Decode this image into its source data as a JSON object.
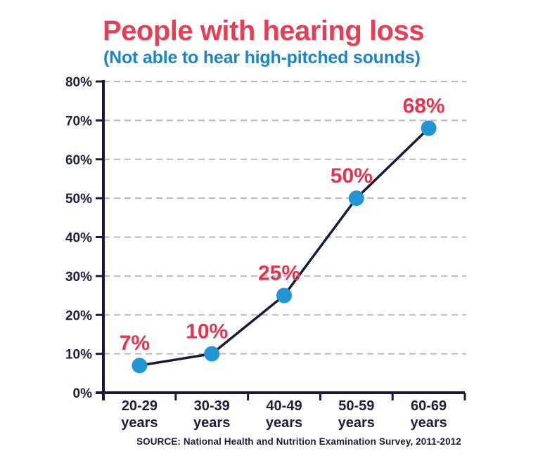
{
  "title": "People with hearing loss",
  "subtitle": "(Not able to hear high-pitched sounds)",
  "source": "SOURCE: National Health and Nutrition Examination Survey, 2011-2012",
  "colors": {
    "title": "#e63e54",
    "subtitle": "#1a86c8",
    "line": "#171a3a",
    "point": "#2196d3",
    "point_label": "#e8334f",
    "axis": "#171a3a",
    "axis_text": "#1b1e3c",
    "grid": "#b8b8bc",
    "background": "#ffffff"
  },
  "chart_data": {
    "type": "line",
    "title": "People with hearing loss",
    "subtitle": "(Not able to hear high-pitched sounds)",
    "categories": [
      "20-29 years",
      "30-39 years",
      "40-49 years",
      "50-59 years",
      "60-69 years"
    ],
    "category_line1": [
      "20-29",
      "30-39",
      "40-49",
      "50-59",
      "60-69"
    ],
    "category_line2": "years",
    "values": [
      7,
      10,
      25,
      50,
      68
    ],
    "point_labels": [
      "7%",
      "10%",
      "25%",
      "50%",
      "68%"
    ],
    "xlabel": "",
    "ylabel": "",
    "ylim": [
      0,
      80
    ],
    "y_tick_step": 10,
    "y_tick_labels": [
      "0%",
      "10%",
      "20%",
      "30%",
      "40%",
      "50%",
      "60%",
      "70%",
      "80%"
    ],
    "grid": "horizontal-dashed",
    "legend": "none",
    "source": "SOURCE: National Health and Nutrition Examination Survey, 2011-2012"
  }
}
